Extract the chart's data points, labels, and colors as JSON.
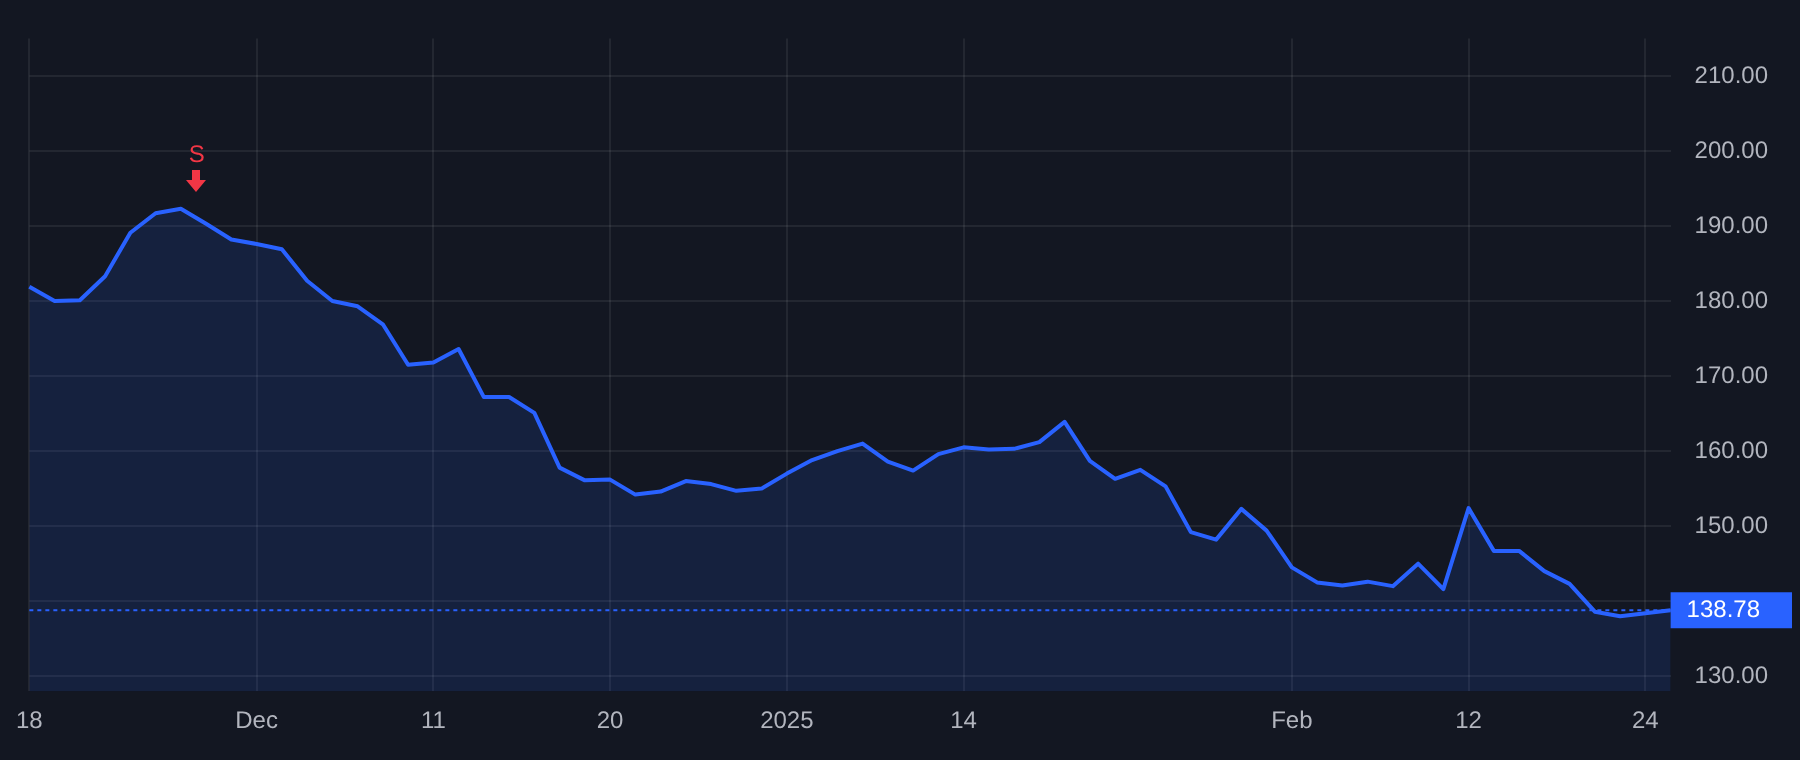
{
  "chart_data": {
    "type": "area",
    "categories": [
      "18",
      null,
      null,
      null,
      null,
      null,
      null,
      null,
      null,
      "Dec",
      null,
      null,
      null,
      null,
      null,
      null,
      "11",
      null,
      null,
      null,
      null,
      null,
      null,
      "20",
      null,
      null,
      null,
      null,
      null,
      null,
      "2025",
      null,
      null,
      null,
      null,
      null,
      null,
      "14",
      null,
      null,
      null,
      null,
      null,
      null,
      null,
      null,
      null,
      null,
      null,
      null,
      "Feb",
      null,
      null,
      null,
      null,
      null,
      null,
      "12",
      null,
      null,
      null,
      null,
      null,
      null,
      "24",
      null
    ],
    "series": [
      {
        "color": "#2962ff",
        "values": [
          181.9,
          180.0,
          180.1,
          183.3,
          189.1,
          191.7,
          192.3,
          190.3,
          188.2,
          187.6,
          186.9,
          182.7,
          180.0,
          179.3,
          176.9,
          171.5,
          171.8,
          173.6,
          167.2,
          167.2,
          165.1,
          157.8,
          156.1,
          156.2,
          154.2,
          154.6,
          156.0,
          155.6,
          154.7,
          155.0,
          157.0,
          158.8,
          160.0,
          161.0,
          158.6,
          157.4,
          159.6,
          160.5,
          160.2,
          160.3,
          161.2,
          163.9,
          158.7,
          156.3,
          157.5,
          155.3,
          149.2,
          148.2,
          152.3,
          149.4,
          144.5,
          142.5,
          142.1,
          142.6,
          142.0,
          145.0,
          141.6,
          152.4,
          146.7,
          146.7,
          144.0,
          142.3,
          138.6,
          138.0,
          138.4,
          138.78
        ]
      }
    ],
    "ylim": [
      128,
      215
    ],
    "yticks": [
      {
        "value": 130,
        "label": "130.00"
      },
      {
        "value": 140,
        "label": null
      },
      {
        "value": 150,
        "label": "150.00"
      },
      {
        "value": 160,
        "label": "160.00"
      },
      {
        "value": 170,
        "label": "170.00"
      },
      {
        "value": 180,
        "label": "180.00"
      },
      {
        "value": 190,
        "label": "190.00"
      },
      {
        "value": 200,
        "label": "200.00"
      },
      {
        "value": 210,
        "label": "210.00"
      }
    ],
    "ref_lines": [
      {
        "axis": "y",
        "value": 138.78,
        "label": "138.78",
        "color": "#2962ff",
        "line_style": "dotted"
      }
    ],
    "annotations": [
      "S"
    ],
    "grid": true,
    "legend": false
  }
}
